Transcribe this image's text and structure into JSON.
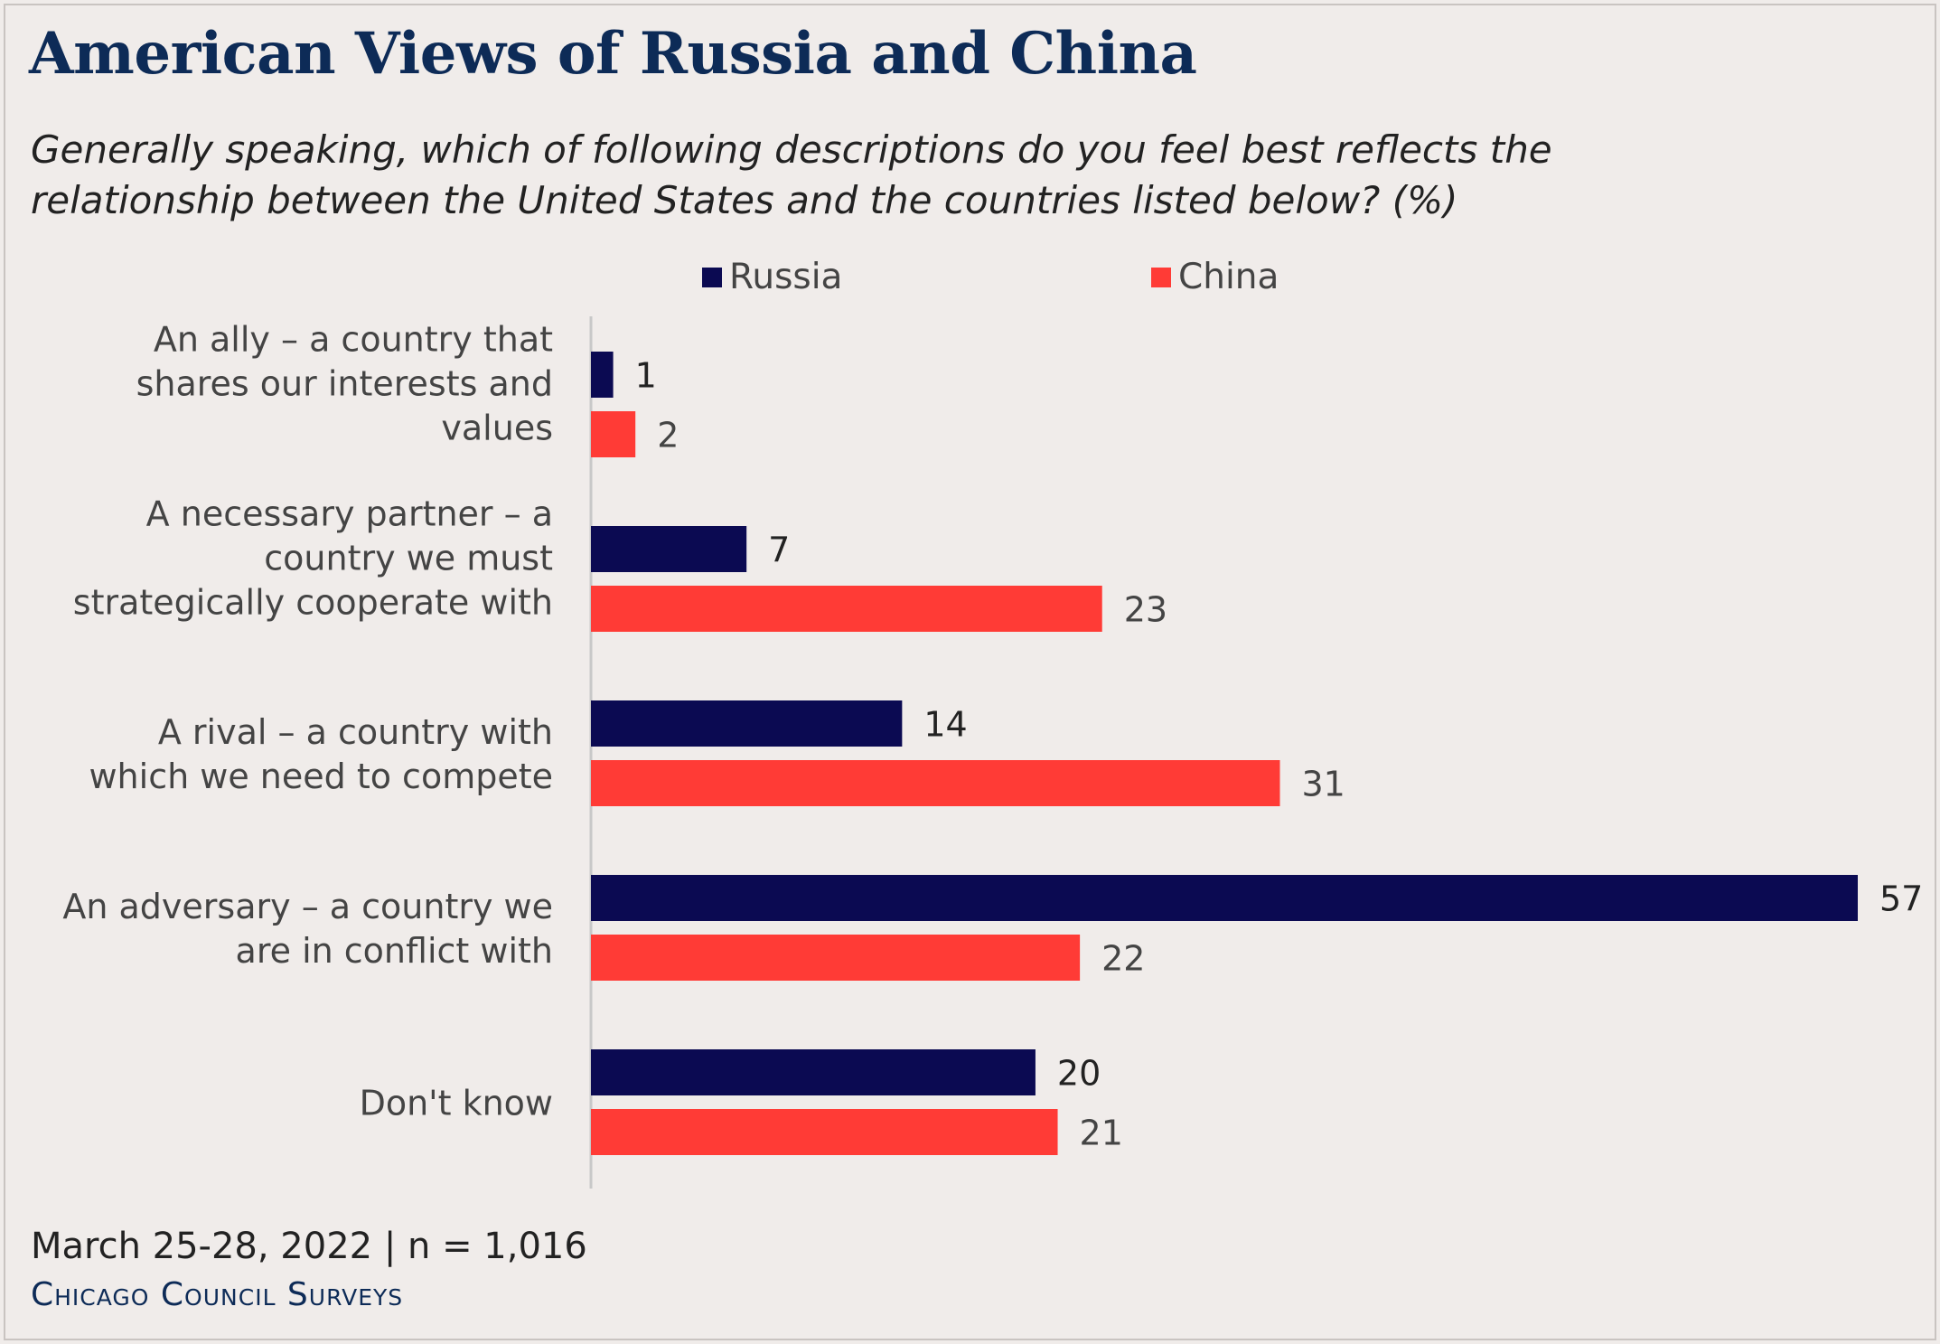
{
  "title": "American Views of Russia and China",
  "subtitle": "Generally speaking, which of following descriptions do you feel best reflects the relationship between the United States and the countries listed below? (%)",
  "footer": {
    "date_n": "March 25-28, 2022 | n = 1,016",
    "brand": "Chicago Council Surveys"
  },
  "colors": {
    "russia": "#0b0a52",
    "china": "#ff3b36",
    "axis": "#c8c8c8",
    "label_text": "#444444",
    "value_text": "#222222"
  },
  "chart_data": {
    "type": "bar",
    "orientation": "horizontal",
    "title": "American Views of Russia and China",
    "unit": "%",
    "categories": [
      "An ally – a country that shares our interests and values",
      "A necessary partner – a country we must strategically cooperate with",
      "A rival – a country with which we need to compete",
      "An adversary – a country we are in conflict with",
      "Don't know"
    ],
    "category_lines": [
      [
        "An ally – a country that",
        "shares our interests and",
        "values"
      ],
      [
        "A necessary partner – a",
        "country we must",
        "strategically cooperate with"
      ],
      [
        "A rival – a country with",
        "which we need to compete"
      ],
      [
        "An adversary – a country we",
        "are in conflict with"
      ],
      [
        "Don't know"
      ]
    ],
    "series": [
      {
        "name": "Russia",
        "values": [
          1,
          7,
          14,
          57,
          20
        ]
      },
      {
        "name": "China",
        "values": [
          2,
          23,
          31,
          22,
          21
        ]
      }
    ],
    "xlim": [
      0,
      57
    ],
    "grid": false,
    "legend_position": "top"
  }
}
